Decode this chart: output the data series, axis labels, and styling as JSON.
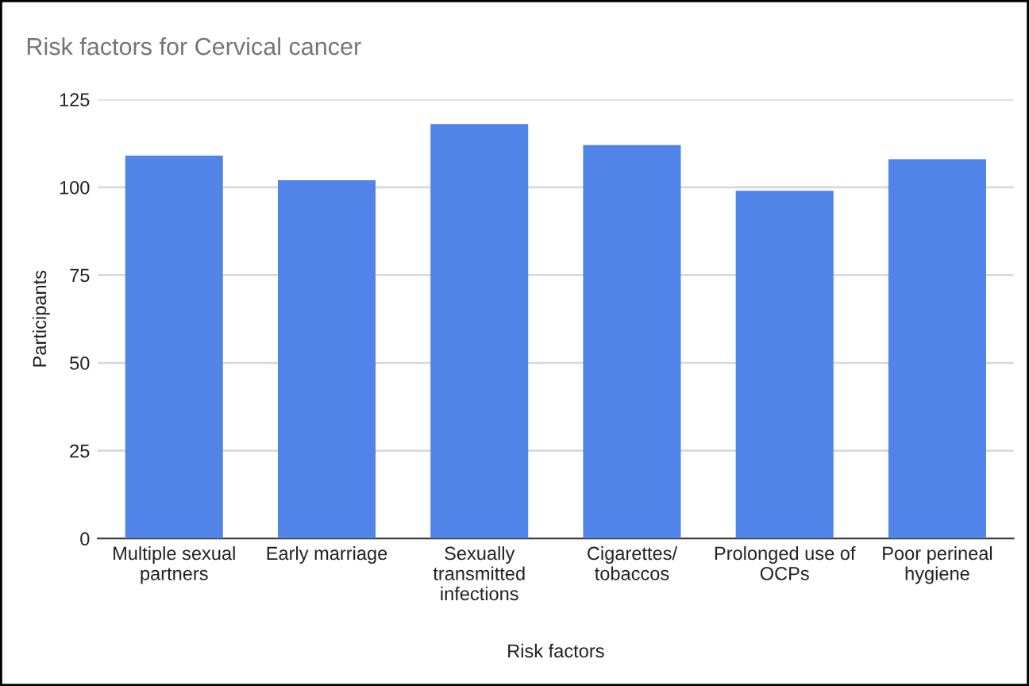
{
  "chart_data": {
    "type": "bar",
    "title": "Risk factors for Cervical cancer",
    "xlabel": "Risk factors",
    "ylabel": "Participants",
    "categories": [
      "Multiple sexual\npartners",
      "Early marriage",
      "Sexually\ntransmitted\ninfections",
      "Cigarettes/\ntobaccos",
      "Prolonged use of\nOCPs",
      "Poor perineal\nhygiene"
    ],
    "values": [
      109,
      102,
      118,
      112,
      99,
      108
    ],
    "color": "#5084e8",
    "ylim": [
      0,
      125
    ],
    "yticks": [
      0,
      25,
      50,
      75,
      100,
      125
    ],
    "grid": "y",
    "legend": false
  }
}
